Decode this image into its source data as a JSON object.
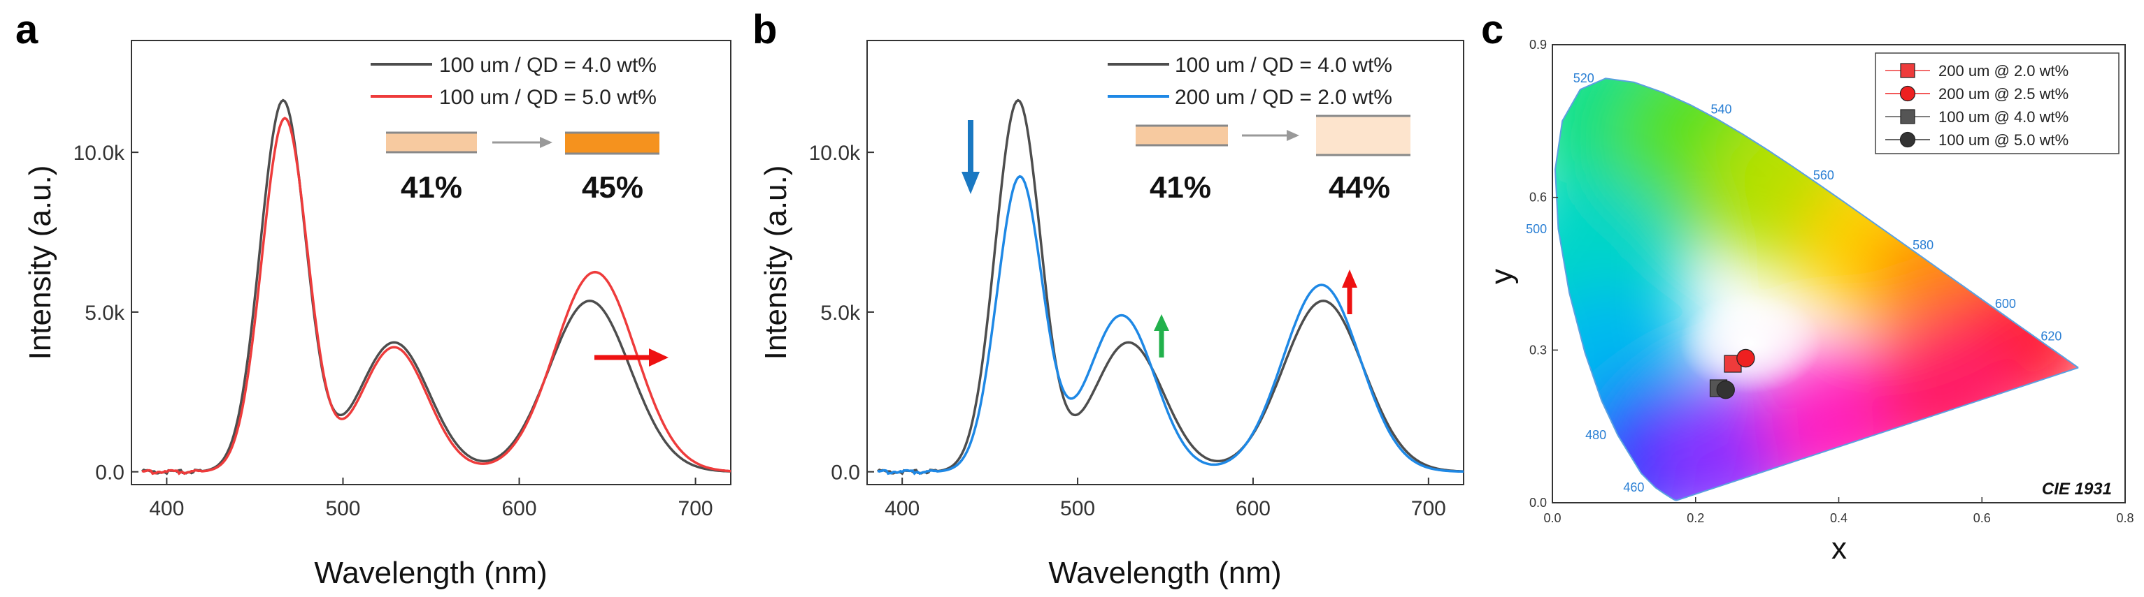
{
  "colors": {
    "gray": "#4d4d4d",
    "red": "#ee3b3b",
    "blue": "#1e88e5",
    "arrow_blue": "#1a78c2",
    "arrow_red": "#ee1111",
    "arrow_green": "#22b14c",
    "film_light": "#f7caa0",
    "film_dark": "#f5921e",
    "film_pale": "#fde4cd"
  },
  "panel_a": {
    "label": "a",
    "badge_before": "41%",
    "badge_after": "45%",
    "chart_data": {
      "type": "line",
      "xlabel": "Wavelength (nm)",
      "ylabel": "Intensity (a.u.)",
      "xlim": [
        380,
        720
      ],
      "ylim": [
        -400,
        13500
      ],
      "xticks": [
        400,
        500,
        600,
        700
      ],
      "yticks": [
        0,
        5000,
        10000
      ],
      "ytick_labels": [
        "0.0",
        "5.0k",
        "10.0k"
      ],
      "series": [
        {
          "name": "100 um / QD = 4.0 wt%",
          "color": "#4d4d4d",
          "peaks": [
            [
              466,
              11600,
              13
            ],
            [
              529,
              4050,
              20
            ],
            [
              640,
              5350,
              23
            ]
          ]
        },
        {
          "name": "100 um / QD = 5.0 wt%",
          "color": "#ee3b3b",
          "peaks": [
            [
              467,
              11050,
              13
            ],
            [
              529,
              3900,
              19
            ],
            [
              643,
              6250,
              23
            ]
          ]
        }
      ],
      "annotations": [
        "right arrow at red peak (redshift)"
      ]
    }
  },
  "panel_b": {
    "label": "b",
    "badge_before": "41%",
    "badge_after": "44%",
    "chart_data": {
      "type": "line",
      "xlabel": "Wavelength (nm)",
      "ylabel": "Intensity (a.u.)",
      "xlim": [
        380,
        720
      ],
      "ylim": [
        -400,
        13500
      ],
      "xticks": [
        400,
        500,
        600,
        700
      ],
      "yticks": [
        0,
        5000,
        10000
      ],
      "ytick_labels": [
        "0.0",
        "5.0k",
        "10.0k"
      ],
      "series": [
        {
          "name": "100 um / QD = 4.0 wt%",
          "color": "#4d4d4d",
          "peaks": [
            [
              466,
              11600,
              13
            ],
            [
              529,
              4050,
              20
            ],
            [
              640,
              5350,
              23
            ]
          ]
        },
        {
          "name": "200 um / QD = 2.0 wt%",
          "color": "#1e88e5",
          "peaks": [
            [
              467,
              9200,
              13
            ],
            [
              525,
              4900,
              19
            ],
            [
              639,
              5850,
              22
            ]
          ]
        }
      ],
      "annotations": [
        "down arrow (blue peak decreases)",
        "up arrow (green peak increases)",
        "up arrow (red peak increases)"
      ]
    }
  },
  "panel_c": {
    "label": "c",
    "footer": "CIE 1931",
    "chart_data": {
      "type": "scatter",
      "title": "CIE 1931",
      "xlabel": "x",
      "ylabel": "y",
      "xlim": [
        0.0,
        0.8
      ],
      "ylim": [
        0.0,
        0.9
      ],
      "xticks": [
        0.0,
        0.2,
        0.4,
        0.6,
        0.8
      ],
      "xtick_labels": [
        "0.0",
        "0.2",
        "0.4",
        "0.6",
        "0.8"
      ],
      "yticks": [
        0.0,
        0.3,
        0.6,
        0.9
      ],
      "ytick_labels": [
        "0.0",
        "0.3",
        "0.6",
        "0.9"
      ],
      "wavelength_labels": [
        {
          "text": "460",
          "x": 0.144,
          "y": 0.03
        },
        {
          "text": "480",
          "x": 0.091,
          "y": 0.133
        },
        {
          "text": "500",
          "x": 0.008,
          "y": 0.538
        },
        {
          "text": "520",
          "x": 0.074,
          "y": 0.834
        },
        {
          "text": "540",
          "x": 0.23,
          "y": 0.754
        },
        {
          "text": "560",
          "x": 0.373,
          "y": 0.624
        },
        {
          "text": "580",
          "x": 0.512,
          "y": 0.487
        },
        {
          "text": "600",
          "x": 0.627,
          "y": 0.372
        },
        {
          "text": "620",
          "x": 0.691,
          "y": 0.308
        }
      ],
      "locus": [
        [
          0.1741,
          0.005
        ],
        [
          0.174,
          0.005
        ],
        [
          0.1733,
          0.0048
        ],
        [
          0.1726,
          0.0048
        ],
        [
          0.1714,
          0.0051
        ],
        [
          0.1689,
          0.0069
        ],
        [
          0.1644,
          0.0109
        ],
        [
          0.1566,
          0.0177
        ],
        [
          0.144,
          0.0297
        ],
        [
          0.1241,
          0.0578
        ],
        [
          0.0913,
          0.1327
        ],
        [
          0.0687,
          0.2007
        ],
        [
          0.0454,
          0.295
        ],
        [
          0.0235,
          0.4127
        ],
        [
          0.0082,
          0.5384
        ],
        [
          0.0039,
          0.6548
        ],
        [
          0.0139,
          0.7502
        ],
        [
          0.0389,
          0.812
        ],
        [
          0.0743,
          0.8338
        ],
        [
          0.1142,
          0.8262
        ],
        [
          0.1547,
          0.8059
        ],
        [
          0.1929,
          0.7816
        ],
        [
          0.2296,
          0.7543
        ],
        [
          0.2658,
          0.7243
        ],
        [
          0.3016,
          0.6923
        ],
        [
          0.3373,
          0.6589
        ],
        [
          0.3731,
          0.6245
        ],
        [
          0.4087,
          0.5896
        ],
        [
          0.4441,
          0.5547
        ],
        [
          0.4788,
          0.5202
        ],
        [
          0.5125,
          0.4866
        ],
        [
          0.5448,
          0.4544
        ],
        [
          0.5752,
          0.4242
        ],
        [
          0.6029,
          0.3965
        ],
        [
          0.627,
          0.3725
        ],
        [
          0.6482,
          0.3514
        ],
        [
          0.6658,
          0.334
        ],
        [
          0.6801,
          0.3197
        ],
        [
          0.6915,
          0.3083
        ],
        [
          0.7006,
          0.2993
        ],
        [
          0.7079,
          0.292
        ],
        [
          0.714,
          0.2859
        ],
        [
          0.719,
          0.2809
        ],
        [
          0.723,
          0.277
        ],
        [
          0.726,
          0.274
        ],
        [
          0.7283,
          0.2717
        ],
        [
          0.73,
          0.27
        ],
        [
          0.7311,
          0.2689
        ],
        [
          0.732,
          0.268
        ],
        [
          0.7327,
          0.2673
        ],
        [
          0.7334,
          0.2666
        ],
        [
          0.734,
          0.266
        ],
        [
          0.7344,
          0.2656
        ],
        [
          0.7346,
          0.2654
        ],
        [
          0.7347,
          0.2653
        ]
      ],
      "series": [
        {
          "name": "200 um @ 2.0 wt%",
          "marker": "square",
          "color": "#ee3b3b",
          "x": 0.252,
          "y": 0.273
        },
        {
          "name": "200 um @ 2.5 wt%",
          "marker": "circle",
          "color": "#ee2020",
          "x": 0.27,
          "y": 0.284
        },
        {
          "name": "100 um @ 4.0 wt%",
          "marker": "square",
          "color": "#555555",
          "x": 0.232,
          "y": 0.225
        },
        {
          "name": "100 um @ 5.0 wt%",
          "marker": "circle",
          "color": "#333333",
          "x": 0.242,
          "y": 0.222
        }
      ]
    }
  }
}
